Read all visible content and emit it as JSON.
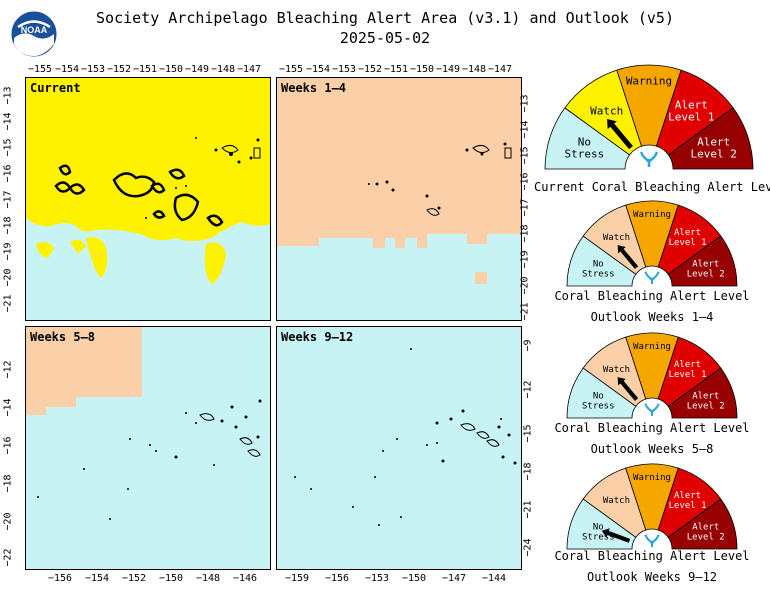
{
  "header": {
    "title": "Society Archipelago Bleaching Alert Area (v3.1) and Outlook (v5)",
    "date": "2025-05-02",
    "logo_text": "NOAA"
  },
  "legend_colors": {
    "no_stress": "#c8f3f5",
    "watch": "#fff200",
    "warning": "#f5a700",
    "alert1": "#e00000",
    "alert2": "#960000",
    "outlook_watch": "#fbd0a8"
  },
  "panels": [
    {
      "label": "Current",
      "top_ticks": [
        "−155",
        "−154",
        "−153",
        "−152",
        "−151",
        "−150",
        "−149",
        "−148",
        "−147"
      ],
      "left_ticks": [
        "−13",
        "−14",
        "−15",
        "−16",
        "−17",
        "−18",
        "−19",
        "−20",
        "−21"
      ]
    },
    {
      "label": "Weeks 1–4",
      "top_ticks": [
        "−155",
        "−154",
        "−153",
        "−152",
        "−151",
        "−150",
        "−149",
        "−148",
        "−147"
      ],
      "right_ticks": [
        "−13",
        "−14",
        "−15",
        "−16",
        "−17",
        "−18",
        "−19",
        "−20",
        "−21"
      ]
    },
    {
      "label": "Weeks 5–8",
      "left_ticks": [
        "−12",
        "−14",
        "−16",
        "−18",
        "−20",
        "−22"
      ],
      "bottom_ticks": [
        "−156",
        "−154",
        "−152",
        "−150",
        "−148",
        "−146"
      ]
    },
    {
      "label": "Weeks 9–12",
      "right_ticks": [
        "−9",
        "−12",
        "−15",
        "−18",
        "−21",
        "−24"
      ],
      "bottom_ticks": [
        "−159",
        "−156",
        "−153",
        "−150",
        "−147",
        "−144"
      ]
    }
  ],
  "gauge_labels": {
    "no_stress": [
      "No",
      "Stress"
    ],
    "watch": "Watch",
    "warning": "Warning",
    "alert1": [
      "Alert",
      "Level 1"
    ],
    "alert2": [
      "Alert",
      "Level 2"
    ]
  },
  "gauges": [
    {
      "caption1": "Current Coral Bleaching Alert Level",
      "caption2": "",
      "level": "watch"
    },
    {
      "caption1": "Coral Bleaching Alert Level",
      "caption2": "Outlook Weeks 1–4",
      "level": "outlook_watch"
    },
    {
      "caption1": "Coral Bleaching Alert Level",
      "caption2": "Outlook Weeks 5–8",
      "level": "outlook_watch"
    },
    {
      "caption1": "Coral Bleaching Alert Level",
      "caption2": "Outlook Weeks 9–12",
      "level": "no_stress"
    }
  ]
}
